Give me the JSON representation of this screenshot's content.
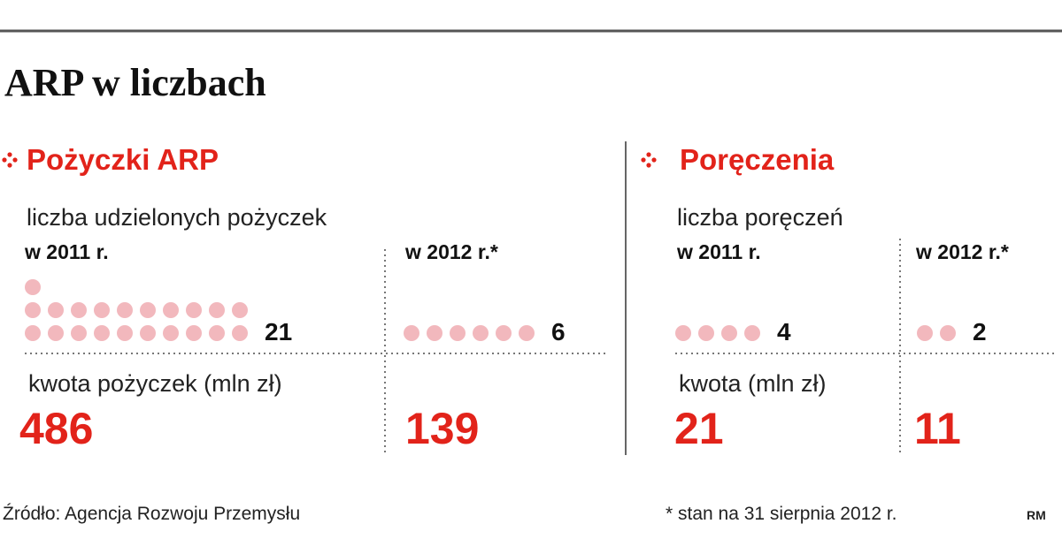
{
  "title": "ARP w liczbach",
  "sections": [
    {
      "heading": "Pożyczki ARP",
      "count_label": "liczba udzielonych pożyczek",
      "amount_label": "kwota pożyczek (mln zł)",
      "columns": [
        {
          "year": "w 2011 r.",
          "count": 21,
          "amount": 486
        },
        {
          "year": "w 2012 r.*",
          "count": 6,
          "amount": 139
        }
      ]
    },
    {
      "heading": "Poręczenia",
      "count_label": "liczba poręczeń",
      "amount_label": "kwota (mln zł)",
      "columns": [
        {
          "year": "w 2011 r.",
          "count": 4,
          "amount": 21
        },
        {
          "year": "w 2012 r.*",
          "count": 2,
          "amount": 11
        }
      ]
    }
  ],
  "source": "Źródło: Agencja Rozwoju Przemysłu",
  "footnote": "* stan na 31 sierpnia 2012 r.",
  "author": "RM"
}
